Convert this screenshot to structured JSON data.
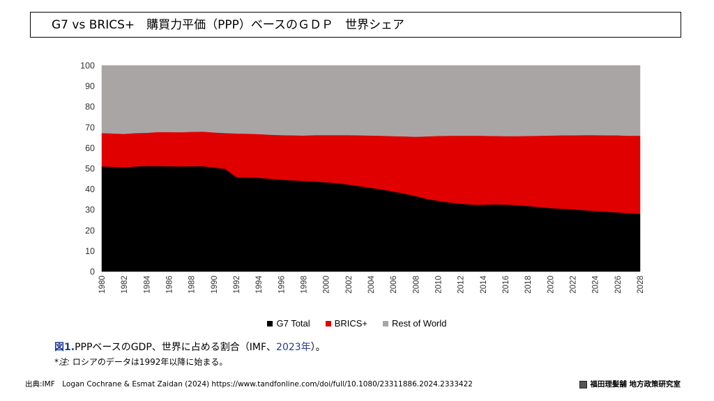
{
  "header": {
    "title": "G7 vs BRICS+　購買力平価（PPP）ベースのＧＤＰ　世界シェア"
  },
  "chart_data": {
    "type": "area",
    "stacked": true,
    "x": [
      1980,
      1981,
      1982,
      1983,
      1984,
      1985,
      1986,
      1987,
      1988,
      1989,
      1990,
      1991,
      1992,
      1993,
      1994,
      1995,
      1996,
      1997,
      1998,
      1999,
      2000,
      2001,
      2002,
      2003,
      2004,
      2005,
      2006,
      2007,
      2008,
      2009,
      2010,
      2011,
      2012,
      2013,
      2014,
      2015,
      2016,
      2017,
      2018,
      2019,
      2020,
      2021,
      2022,
      2023,
      2024,
      2025,
      2026,
      2027,
      2028
    ],
    "x_ticks": [
      1980,
      1982,
      1984,
      1986,
      1988,
      1990,
      1992,
      1994,
      1996,
      1998,
      2000,
      2002,
      2004,
      2006,
      2008,
      2010,
      2012,
      2014,
      2016,
      2018,
      2020,
      2022,
      2024,
      2026,
      2028
    ],
    "series": [
      {
        "name": "G7 Total",
        "color": "#000000",
        "values": [
          51,
          50.8,
          50.5,
          51,
          51.2,
          51.2,
          51.1,
          51,
          51.1,
          51.1,
          50.5,
          49.8,
          45.8,
          45.6,
          45.5,
          45,
          44.6,
          44.2,
          44,
          43.7,
          43.3,
          42.9,
          42.2,
          41.4,
          40.6,
          39.8,
          38.8,
          37.8,
          36.6,
          35.2,
          34.3,
          33.5,
          32.9,
          32.5,
          32.4,
          32.6,
          32.5,
          32.2,
          31.8,
          31.3,
          30.8,
          30.5,
          30.2,
          29.8,
          29.4,
          29,
          28.7,
          28.3,
          28
        ]
      },
      {
        "name": "BRICS+",
        "color": "#e00000",
        "values": [
          16.2,
          16.2,
          16.3,
          16.2,
          16.1,
          16.5,
          16.6,
          16.6,
          16.7,
          16.8,
          17,
          17.4,
          21.2,
          21.3,
          21.2,
          21.4,
          21.6,
          21.9,
          22,
          22.5,
          22.9,
          23.3,
          24,
          24.7,
          25.4,
          26.1,
          26.9,
          27.8,
          28.8,
          30.4,
          31.5,
          32.4,
          33,
          33.4,
          33.5,
          33.2,
          33.2,
          33.5,
          34,
          34.6,
          35.2,
          35.6,
          35.9,
          36.4,
          36.8,
          37.1,
          37.4,
          37.6,
          37.9
        ]
      },
      {
        "name": "Rest of World",
        "color": "#a9a5a5",
        "values": [
          32.8,
          33,
          33.2,
          32.8,
          32.7,
          32.3,
          32.3,
          32.4,
          32.2,
          32.1,
          32.5,
          32.8,
          33,
          33.1,
          33.3,
          33.6,
          33.8,
          33.9,
          34,
          33.8,
          33.8,
          33.8,
          33.8,
          33.9,
          34,
          34.1,
          34.3,
          34.4,
          34.6,
          34.4,
          34.2,
          34.1,
          34.1,
          34.1,
          34.1,
          34.2,
          34.3,
          34.3,
          34.2,
          34.1,
          34,
          33.9,
          33.9,
          33.8,
          33.8,
          33.9,
          33.9,
          34.1,
          34.1
        ]
      }
    ],
    "ylim": [
      0,
      100
    ],
    "y_ticks": [
      0,
      10,
      20,
      30,
      40,
      50,
      60,
      70,
      80,
      90,
      100
    ],
    "legend_position": "bottom",
    "grid": false
  },
  "caption": {
    "prefix": "図1.",
    "text": "PPPベースのGDP、世界に占める割合（IMF、",
    "year": "2023年",
    "suffix": "）。"
  },
  "note": {
    "label": "*注:",
    "text": " ロシアのデータは1992年以降に始まる。"
  },
  "footer": {
    "source": "出典:IMF　Logan Cochrane & Esmat Zaidan (2024) https://www.tandfonline.com/doi/full/10.1080/23311886.2024.2333422",
    "institution": "福田理髪舗 地方政策研究室"
  }
}
